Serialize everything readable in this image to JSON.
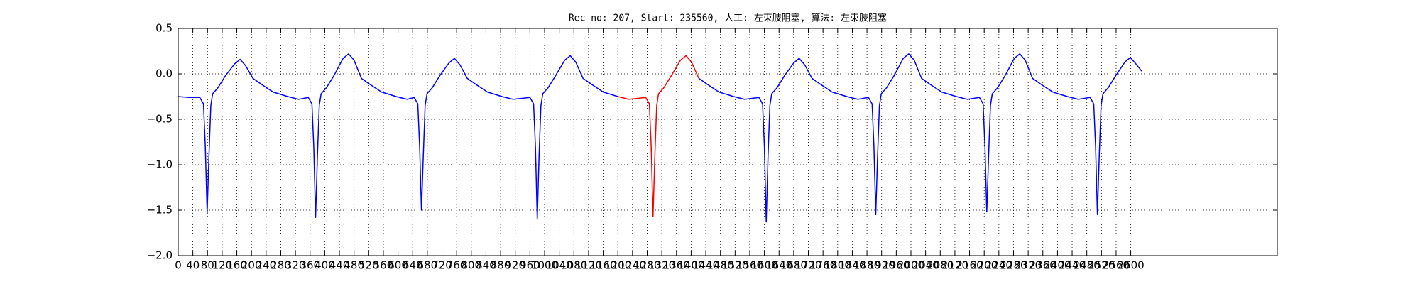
{
  "chart_data": {
    "type": "line",
    "title": "Rec_no: 207, Start: 235560, 人工: 左束肢阻塞, 算法: 左束肢阻塞",
    "x": [
      0,
      30,
      59,
      69,
      74,
      79,
      84,
      89,
      94,
      109,
      129,
      154,
      169,
      184,
      204,
      229,
      259,
      299,
      329,
      355,
      365,
      370,
      375,
      380,
      385,
      390,
      405,
      425,
      450,
      465,
      480,
      500,
      525,
      555,
      595,
      625,
      644,
      654,
      659,
      664,
      669,
      674,
      679,
      694,
      714,
      739,
      754,
      769,
      789,
      814,
      844,
      884,
      914,
      960,
      970,
      975,
      980,
      985,
      990,
      995,
      1010,
      1030,
      1055,
      1070,
      1085,
      1105,
      1130,
      1160,
      1200,
      1230,
      1276,
      1286,
      1291,
      1296,
      1301,
      1306,
      1311,
      1326,
      1346,
      1371,
      1386,
      1401,
      1421,
      1446,
      1476,
      1516,
      1546,
      1585,
      1595,
      1600,
      1605,
      1610,
      1615,
      1620,
      1635,
      1655,
      1680,
      1695,
      1710,
      1730,
      1755,
      1785,
      1825,
      1855,
      1884,
      1894,
      1899,
      1904,
      1909,
      1914,
      1919,
      1934,
      1954,
      1979,
      1994,
      2009,
      2029,
      2054,
      2084,
      2124,
      2154,
      2187,
      2197,
      2202,
      2207,
      2212,
      2217,
      2222,
      2237,
      2257,
      2282,
      2297,
      2312,
      2332,
      2357,
      2387,
      2427,
      2457,
      2489,
      2499,
      2504,
      2509,
      2514,
      2519,
      2524,
      2539,
      2559,
      2584,
      2599,
      2614,
      2630
    ],
    "series": [
      {
        "color": "#0000ff",
        "values": [
          -0.25,
          -0.26,
          -0.26,
          -0.33,
          -0.8,
          -1.53,
          -0.9,
          -0.35,
          -0.22,
          -0.15,
          -0.02,
          0.11,
          0.16,
          0.09,
          -0.05,
          -0.12,
          -0.2,
          -0.25,
          -0.28,
          -0.26,
          -0.33,
          -0.8,
          -1.58,
          -0.9,
          -0.35,
          -0.22,
          -0.15,
          -0.02,
          0.17,
          0.22,
          0.15,
          -0.05,
          -0.12,
          -0.2,
          -0.25,
          -0.28,
          -0.26,
          -0.33,
          -0.8,
          -1.5,
          -0.9,
          -0.35,
          -0.22,
          -0.15,
          -0.02,
          0.12,
          0.17,
          0.1,
          -0.05,
          -0.12,
          -0.2,
          -0.25,
          -0.28,
          -0.26,
          -0.33,
          -0.8,
          -1.6,
          -0.9,
          -0.35,
          -0.22,
          -0.15,
          -0.02,
          0.15,
          0.2,
          0.13,
          -0.05,
          -0.12,
          -0.2,
          -0.25,
          null,
          null,
          null,
          null,
          null,
          null,
          null,
          null,
          null,
          null,
          null,
          null,
          null,
          -0.05,
          -0.12,
          -0.2,
          -0.25,
          -0.28,
          -0.26,
          -0.33,
          -0.8,
          -1.63,
          -0.9,
          -0.35,
          -0.22,
          -0.15,
          -0.02,
          0.12,
          0.17,
          0.1,
          -0.05,
          -0.12,
          -0.2,
          -0.25,
          -0.28,
          -0.26,
          -0.33,
          -0.8,
          -1.55,
          -0.9,
          -0.35,
          -0.22,
          -0.15,
          -0.02,
          0.17,
          0.22,
          0.15,
          -0.05,
          -0.12,
          -0.2,
          -0.25,
          -0.28,
          -0.26,
          -0.33,
          -0.8,
          -1.52,
          -0.9,
          -0.35,
          -0.22,
          -0.15,
          -0.02,
          0.17,
          0.22,
          0.15,
          -0.05,
          -0.12,
          -0.2,
          -0.25,
          -0.28,
          -0.26,
          -0.33,
          -0.8,
          -1.55,
          -0.9,
          -0.35,
          -0.22,
          -0.15,
          -0.02,
          0.13,
          0.18,
          0.11,
          0.03
        ]
      },
      {
        "color": "#ff0000",
        "values": [
          null,
          null,
          null,
          null,
          null,
          null,
          null,
          null,
          null,
          null,
          null,
          null,
          null,
          null,
          null,
          null,
          null,
          null,
          null,
          null,
          null,
          null,
          null,
          null,
          null,
          null,
          null,
          null,
          null,
          null,
          null,
          null,
          null,
          null,
          null,
          null,
          null,
          null,
          null,
          null,
          null,
          null,
          null,
          null,
          null,
          null,
          null,
          null,
          null,
          null,
          null,
          null,
          null,
          null,
          null,
          null,
          null,
          null,
          null,
          null,
          null,
          null,
          null,
          null,
          null,
          null,
          null,
          null,
          -0.25,
          -0.28,
          -0.26,
          -0.33,
          -0.8,
          -1.57,
          -0.9,
          -0.35,
          -0.22,
          -0.15,
          -0.02,
          0.15,
          0.2,
          0.13,
          -0.05,
          null,
          null,
          null,
          null,
          null,
          null,
          null,
          null,
          null,
          null,
          null,
          null,
          null,
          null,
          null,
          null,
          null,
          null,
          null,
          null,
          null,
          null,
          null,
          null,
          null,
          null,
          null,
          null,
          null,
          null,
          null,
          null,
          null,
          null,
          null,
          null,
          null,
          null,
          null,
          null,
          null,
          null,
          null,
          null,
          null,
          null,
          null,
          null,
          null,
          null,
          null,
          null,
          null,
          null,
          null,
          null,
          null,
          null,
          null,
          null,
          null,
          null,
          null,
          null,
          null,
          null,
          null,
          null
        ]
      }
    ],
    "xlim": [
      0,
      3000
    ],
    "xticks": [
      0,
      40,
      80,
      120,
      160,
      200,
      240,
      280,
      320,
      360,
      400,
      440,
      480,
      520,
      560,
      600,
      640,
      680,
      720,
      760,
      800,
      840,
      880,
      920,
      960,
      1000,
      1040,
      1080,
      1120,
      1160,
      1200,
      1240,
      1280,
      1320,
      1360,
      1400,
      1440,
      1480,
      1520,
      1560,
      1600,
      1640,
      1680,
      1720,
      1760,
      1800,
      1840,
      1880,
      1920,
      1960,
      2000,
      2040,
      2080,
      2120,
      2160,
      2200,
      2240,
      2280,
      2320,
      2360,
      2400,
      2440,
      2480,
      2520,
      2560,
      2600
    ],
    "ylim": [
      -2,
      0.5
    ],
    "yticks": [
      {
        "value": -2,
        "label": "−2.0"
      },
      {
        "value": -1.5,
        "label": "−1.5"
      },
      {
        "value": -1,
        "label": "−1.0"
      },
      {
        "value": -0.5,
        "label": "−0.5"
      },
      {
        "value": 0,
        "label": "0.0"
      },
      {
        "value": 0.5,
        "label": "0.5"
      }
    ],
    "grid": true
  }
}
